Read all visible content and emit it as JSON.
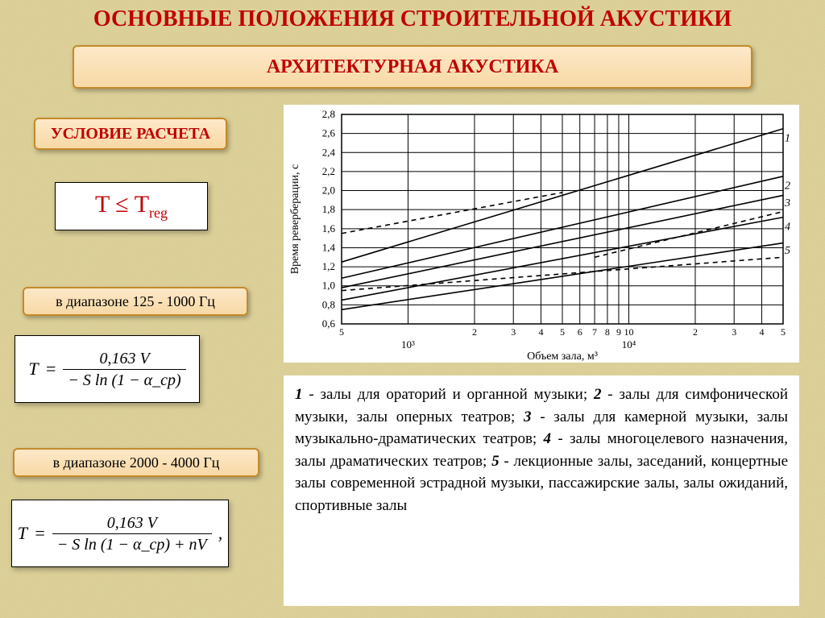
{
  "title": "ОСНОВНЫЕ ПОЛОЖЕНИЯ СТРОИТЕЛЬНОЙ АКУСТИКИ",
  "subtitle": "АРХИТЕКТУРНАЯ АКУСТИКА",
  "condition_label": "УСЛОВИЕ РАСЧЕТА",
  "inequality": {
    "lhs": "T",
    "op": "≤",
    "rhs": "T",
    "rhs_sub": "reg"
  },
  "range1": "в диапазоне 125 - 1000 Гц",
  "range2": "в диапазоне 2000 - 4000 Гц",
  "formula1": {
    "lhs": "T",
    "numerator": "0,163 V",
    "denominator": "− S ln (1 − α_ср)"
  },
  "formula2": {
    "lhs": "T",
    "numerator": "0,163 V",
    "denominator": "− S ln (1 − α_ср) + nV",
    "trailer": " ,"
  },
  "chart": {
    "type": "line-loglinear",
    "xlabel": "Объем зала, м³",
    "ylabel": "Время реверберации, с",
    "ylim": [
      0.6,
      2.8
    ],
    "ytick_step": 0.2,
    "yticks": [
      0.6,
      0.8,
      1.0,
      1.2,
      1.4,
      1.6,
      1.8,
      2.0,
      2.2,
      2.4,
      2.6,
      2.8
    ],
    "x_log_ticks": [
      500,
      1000,
      2000,
      3000,
      4000,
      5000,
      6000,
      7000,
      8000,
      9000,
      10000,
      20000,
      30000,
      40000,
      50000
    ],
    "x_major_labels": {
      "1000": "10³",
      "10000": "10⁴"
    },
    "x_minor_labels": {
      "500": "5",
      "2000": "2",
      "3000": "3",
      "4000": "4",
      "5000": "5",
      "6000": "6",
      "7000": "7",
      "8000": "8",
      "9000": "9",
      "10000": "10",
      "20000": "2",
      "30000": "3",
      "40000": "4",
      "50000": "5"
    },
    "background_color": "#ffffff",
    "grid_color": "#000000",
    "line_color": "#000000",
    "line_width": 1.6,
    "dash_pattern": "6,5",
    "series": [
      {
        "id": "1",
        "label": "1",
        "dash": false,
        "points": [
          [
            500,
            1.25
          ],
          [
            50000,
            2.65
          ]
        ]
      },
      {
        "id": "1d",
        "label": "",
        "dash": true,
        "points": [
          [
            500,
            1.55
          ],
          [
            5000,
            1.98
          ]
        ]
      },
      {
        "id": "2",
        "label": "2",
        "dash": false,
        "points": [
          [
            500,
            1.08
          ],
          [
            50000,
            2.15
          ]
        ]
      },
      {
        "id": "3",
        "label": "3",
        "dash": false,
        "points": [
          [
            500,
            0.98
          ],
          [
            50000,
            1.95
          ]
        ]
      },
      {
        "id": "4",
        "label": "4",
        "dash": false,
        "points": [
          [
            500,
            0.85
          ],
          [
            50000,
            1.72
          ]
        ]
      },
      {
        "id": "4d",
        "label": "",
        "dash": true,
        "points": [
          [
            7000,
            1.3
          ],
          [
            50000,
            1.78
          ]
        ]
      },
      {
        "id": "5",
        "label": "5",
        "dash": false,
        "points": [
          [
            500,
            0.75
          ],
          [
            50000,
            1.45
          ]
        ]
      },
      {
        "id": "5d",
        "label": "",
        "dash": true,
        "points": [
          [
            500,
            0.95
          ],
          [
            50000,
            1.3
          ]
        ]
      }
    ],
    "series_label_positions": {
      "1": {
        "x": 50000,
        "y": 2.55
      },
      "2": {
        "x": 50000,
        "y": 2.05
      },
      "3": {
        "x": 50000,
        "y": 1.87
      },
      "4": {
        "x": 50000,
        "y": 1.62
      },
      "5": {
        "x": 50000,
        "y": 1.37
      }
    }
  },
  "legend_items": [
    {
      "n": "1",
      "text": "залы для ораторий и органной музыки"
    },
    {
      "n": "2",
      "text": "залы для симфонической музыки, залы оперных театров"
    },
    {
      "n": "3",
      "text": "залы для камерной музыки, залы музыкально-драматических театров"
    },
    {
      "n": "4",
      "text": "залы многоцелевого назначения, залы драматических театров"
    },
    {
      "n": "5",
      "text": "лекционные залы, заседаний, концертные залы современной эстрадной музыки, пассажирские залы, залы ожиданий, спортивные залы"
    }
  ],
  "colors": {
    "accent_red": "#c00000",
    "box_fill_top": "#fde8c8",
    "box_fill_bottom": "#f8d9a6",
    "box_border": "#c48a2a",
    "page_bg": "#d6c88a"
  }
}
